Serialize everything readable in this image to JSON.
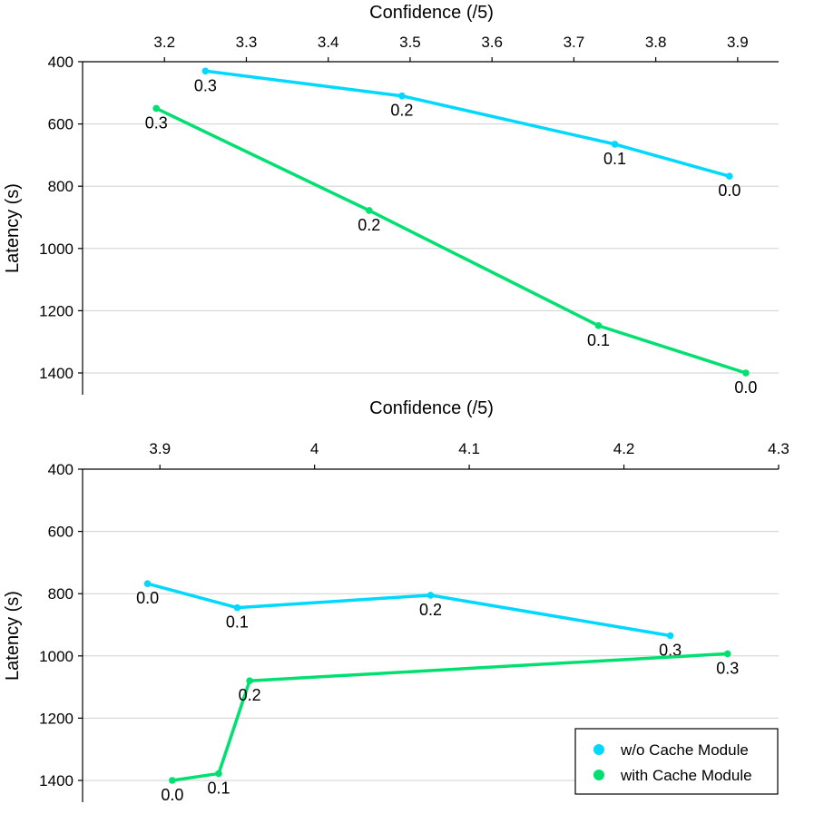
{
  "chart_data": [
    {
      "type": "line",
      "xlabel": "Confidence (/5)",
      "ylabel": "Latency (s)",
      "xlim": [
        3.1,
        3.95
      ],
      "ylim": [
        400,
        1470
      ],
      "y_inverted": true,
      "x_ticks": [
        3.2,
        3.3,
        3.4,
        3.5,
        3.6,
        3.7,
        3.8,
        3.9
      ],
      "x_tick_labels": [
        "3.2",
        "3.3",
        "3.4",
        "3.5",
        "3.6",
        "3.7",
        "3.8",
        "3.9"
      ],
      "y_ticks": [
        400,
        600,
        800,
        1000,
        1200,
        1400
      ],
      "y_tick_labels": [
        "400",
        "600",
        "800",
        "1000",
        "1200",
        "1400"
      ],
      "grid": true,
      "series": [
        {
          "name": "w/o Cache Module",
          "color": "#00d8ff",
          "points": [
            {
              "x": 3.25,
              "y": 430,
              "label": "0.3"
            },
            {
              "x": 3.49,
              "y": 510,
              "label": "0.2"
            },
            {
              "x": 3.75,
              "y": 665,
              "label": "0.1"
            },
            {
              "x": 3.89,
              "y": 768,
              "label": "0.0"
            }
          ]
        },
        {
          "name": "with Cache Module",
          "color": "#00e070",
          "points": [
            {
              "x": 3.19,
              "y": 550,
              "label": "0.3"
            },
            {
              "x": 3.45,
              "y": 878,
              "label": "0.2"
            },
            {
              "x": 3.73,
              "y": 1248,
              "label": "0.1"
            },
            {
              "x": 3.91,
              "y": 1400,
              "label": "0.0"
            }
          ]
        }
      ]
    },
    {
      "type": "line",
      "xlabel": "Confidence (/5)",
      "ylabel": "Latency (s)",
      "xlim": [
        3.85,
        4.3
      ],
      "ylim": [
        400,
        1470
      ],
      "y_inverted": true,
      "x_ticks": [
        3.9,
        4.0,
        4.1,
        4.2,
        4.3
      ],
      "x_tick_labels": [
        "3.9",
        "4",
        "4.1",
        "4.2",
        "4.3"
      ],
      "y_ticks": [
        400,
        600,
        800,
        1000,
        1200,
        1400
      ],
      "y_tick_labels": [
        "400",
        "600",
        "800",
        "1000",
        "1200",
        "1400"
      ],
      "grid": true,
      "legend": {
        "position": "bottom-right",
        "entries": [
          {
            "name": "w/o Cache Module",
            "color": "#00d8ff"
          },
          {
            "name": "with Cache Module",
            "color": "#00e070"
          }
        ]
      },
      "series": [
        {
          "name": "w/o Cache Module",
          "color": "#00d8ff",
          "points": [
            {
              "x": 3.892,
              "y": 768,
              "label": "0.0"
            },
            {
              "x": 3.95,
              "y": 845,
              "label": "0.1"
            },
            {
              "x": 4.075,
              "y": 805,
              "label": "0.2"
            },
            {
              "x": 4.23,
              "y": 935,
              "label": "0.3"
            }
          ]
        },
        {
          "name": "with Cache Module",
          "color": "#00e070",
          "points": [
            {
              "x": 3.908,
              "y": 1400,
              "label": "0.0"
            },
            {
              "x": 3.938,
              "y": 1378,
              "label": "0.1"
            },
            {
              "x": 3.958,
              "y": 1080,
              "label": "0.2"
            },
            {
              "x": 4.267,
              "y": 993,
              "label": "0.3"
            }
          ]
        }
      ]
    }
  ]
}
